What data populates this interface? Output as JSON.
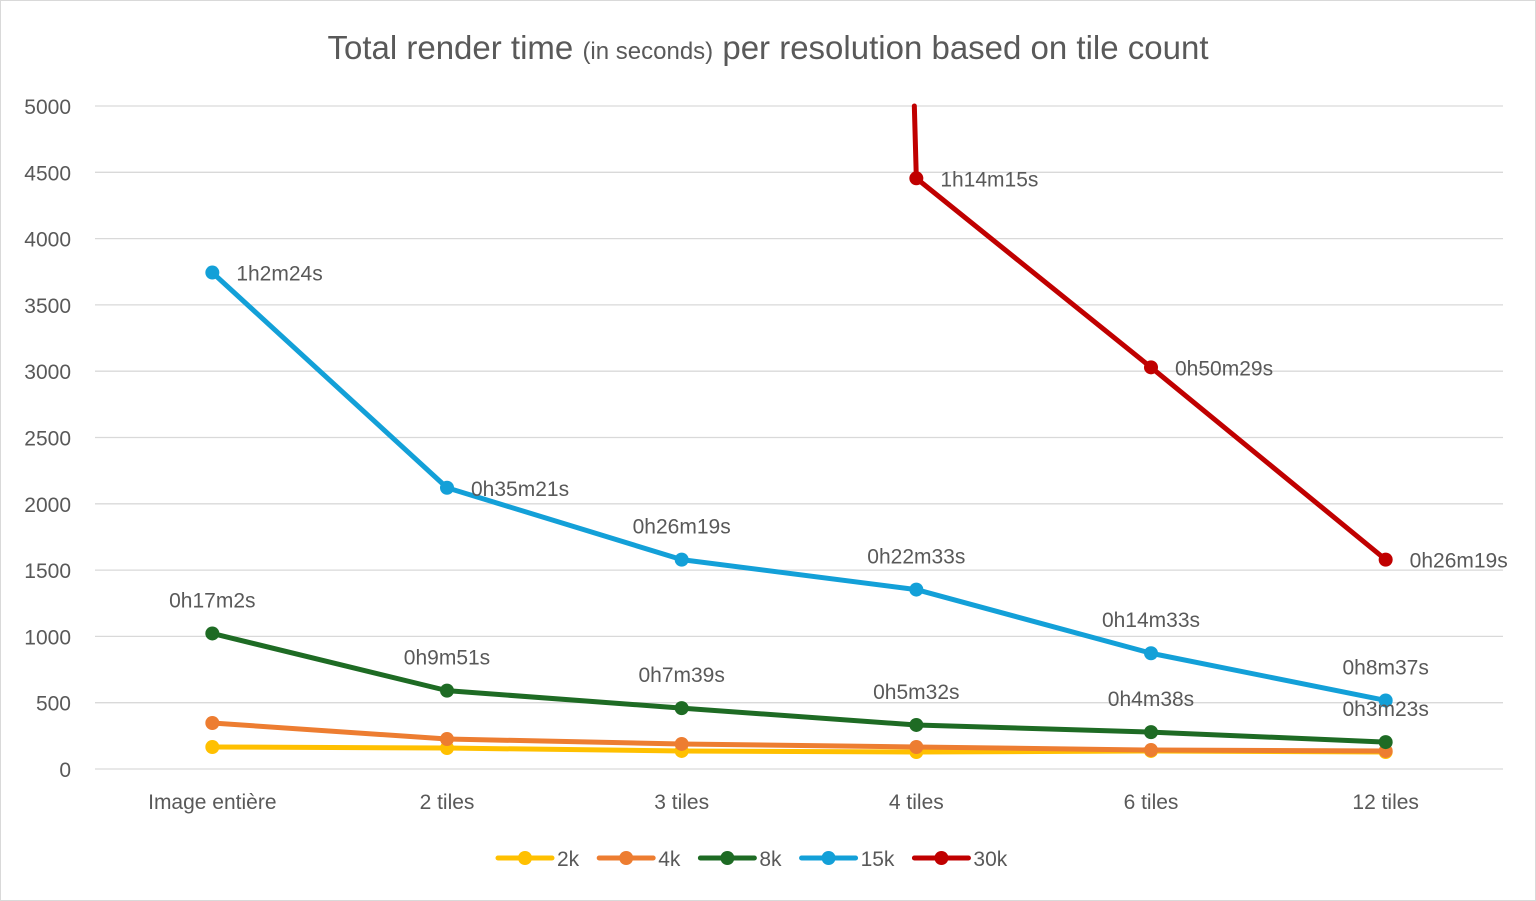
{
  "chart_data": {
    "type": "line",
    "title": "Total render time",
    "title_unit": "(in seconds)",
    "title_rest": "per resolution based on tile count",
    "categories": [
      "Image entière",
      "2 tiles",
      "3 tiles",
      "4 tiles",
      "6 tiles",
      "12 tiles"
    ],
    "ylim": [
      0,
      5000
    ],
    "yticks": [
      0,
      500,
      1000,
      1500,
      2000,
      2500,
      3000,
      3500,
      4000,
      4500,
      5000
    ],
    "grid": true,
    "legend_position": "bottom",
    "series": [
      {
        "name": "2k",
        "color": "#FFC000",
        "values": [
          166,
          158,
          136,
          128,
          136,
          128
        ],
        "labels": []
      },
      {
        "name": "4k",
        "color": "#ED7D31",
        "values": [
          347,
          226,
          189,
          166,
          143,
          136
        ],
        "labels": []
      },
      {
        "name": "8k",
        "color": "#1E6B24",
        "values": [
          1022,
          591,
          459,
          332,
          278,
          203
        ],
        "labels": [
          "0h17m2s",
          "0h9m51s",
          "0h7m39s",
          "0h5m32s",
          "0h4m38s",
          "0h3m23s"
        ]
      },
      {
        "name": "15k",
        "color": "#13A0D8",
        "values": [
          3744,
          2121,
          1579,
          1353,
          873,
          517
        ],
        "labels": [
          "1h2m24s",
          "0h35m21s",
          "0h26m19s",
          "0h22m33s",
          "0h14m33s",
          "0h8m37s"
        ]
      },
      {
        "name": "30k",
        "color": "#C00000",
        "values": [
          null,
          null,
          null,
          4455,
          3029,
          1579
        ],
        "labels": [
          "",
          "",
          "",
          "1h14m15s",
          "0h50m29s",
          "0h26m19s"
        ],
        "exceeds_axis_before_4_tiles": true
      }
    ]
  }
}
